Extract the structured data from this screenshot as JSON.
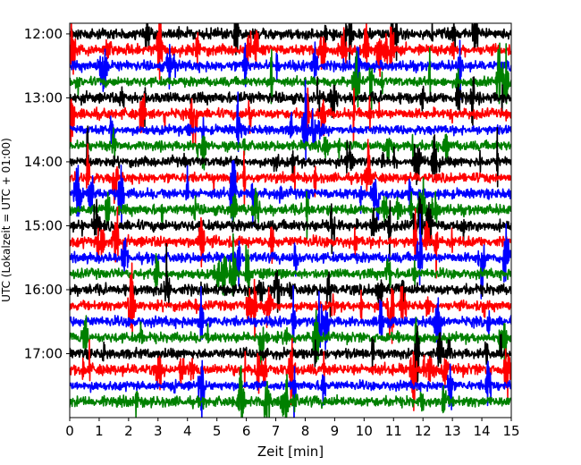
{
  "chart_data": {
    "type": "line",
    "title": "",
    "xlabel": "Zeit  [min]",
    "ylabel": "UTC (Lokalzeit = UTC + 01:00)",
    "xlim": [
      0,
      15
    ],
    "x_ticks": [
      0,
      1,
      2,
      3,
      4,
      5,
      6,
      7,
      8,
      9,
      10,
      11,
      12,
      13,
      14,
      15
    ],
    "y_range_minutes_utc": [
      "11:50",
      "18:00"
    ],
    "y_ticks": [
      "12:00",
      "13:00",
      "14:00",
      "15:00",
      "16:00",
      "17:00"
    ],
    "trace_interval_min": 15,
    "trace_start_utc": "12:00",
    "trace_count": 24,
    "color_cycle": [
      "#000000",
      "#ff0000",
      "#0000ff",
      "#008000"
    ],
    "grid": false,
    "legend": "none"
  }
}
